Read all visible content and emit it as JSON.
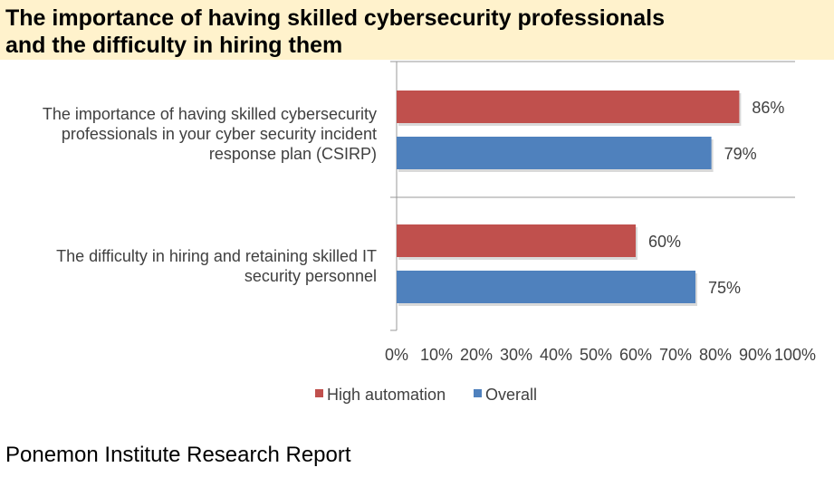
{
  "title": {
    "line1": "The importance of having skilled cybersecurity professionals",
    "line2": "and the difficulty in hiring them"
  },
  "colors": {
    "title_background": "#FFF2CC",
    "high_automation": "#C0504D",
    "overall": "#4F81BD"
  },
  "chart_data": {
    "type": "bar",
    "orientation": "horizontal",
    "categories": [
      [
        "The importance of having skilled cybersecurity",
        "professionals in your cyber security incident",
        "response plan (CSIRP)"
      ],
      [
        "The difficulty in hiring and retaining skilled IT",
        "security personnel"
      ]
    ],
    "series": [
      {
        "name": "High automation",
        "color": "#C0504D",
        "values": [
          86,
          60
        ],
        "labels": [
          "86%",
          "60%"
        ]
      },
      {
        "name": "Overall",
        "color": "#4F81BD",
        "values": [
          79,
          75
        ],
        "labels": [
          "79%",
          "75%"
        ]
      }
    ],
    "xlim": [
      0,
      100
    ],
    "xticks": [
      "0%",
      "10%",
      "20%",
      "30%",
      "40%",
      "50%",
      "60%",
      "70%",
      "80%",
      "90%",
      "100%"
    ],
    "legend_position": "bottom",
    "grid": false
  },
  "source": "Ponemon Institute Research Report"
}
